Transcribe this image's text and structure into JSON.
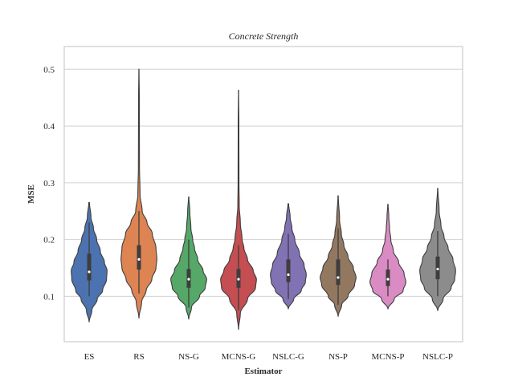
{
  "chart_data": {
    "type": "violin",
    "title": "Concrete Strength",
    "xlabel": "Estimator",
    "ylabel": "MSE",
    "ylim": [
      0.02,
      0.54
    ],
    "yticks": [
      0.1,
      0.2,
      0.3,
      0.4,
      0.5
    ],
    "ytick_labels": [
      "0.1",
      "0.2",
      "0.3",
      "0.4",
      "0.5"
    ],
    "grid": "horizontal",
    "categories": [
      "ES",
      "RS",
      "NS-G",
      "MCNS-G",
      "NSLC-G",
      "NS-P",
      "MCNS-P",
      "NSLC-P"
    ],
    "series": [
      {
        "category": "ES",
        "color": "#4c72b0",
        "min": 0.055,
        "max": 0.265,
        "q1": 0.128,
        "median": 0.143,
        "q3": 0.175,
        "whisker_low": 0.1,
        "whisker_high": 0.23,
        "profile": [
          [
            0.055,
            0.005
          ],
          [
            0.075,
            0.15
          ],
          [
            0.095,
            0.45
          ],
          [
            0.11,
            0.75
          ],
          [
            0.13,
            0.97
          ],
          [
            0.145,
            1.0
          ],
          [
            0.16,
            0.85
          ],
          [
            0.18,
            0.62
          ],
          [
            0.2,
            0.42
          ],
          [
            0.22,
            0.24
          ],
          [
            0.24,
            0.1
          ],
          [
            0.265,
            0.02
          ]
        ]
      },
      {
        "category": "RS",
        "color": "#dd8452",
        "min": 0.062,
        "max": 0.5,
        "q1": 0.147,
        "median": 0.165,
        "q3": 0.19,
        "whisker_low": 0.105,
        "whisker_high": 0.25,
        "profile": [
          [
            0.062,
            0.005
          ],
          [
            0.09,
            0.15
          ],
          [
            0.11,
            0.4
          ],
          [
            0.13,
            0.72
          ],
          [
            0.15,
            0.95
          ],
          [
            0.165,
            1.0
          ],
          [
            0.185,
            0.95
          ],
          [
            0.21,
            0.75
          ],
          [
            0.23,
            0.45
          ],
          [
            0.25,
            0.18
          ],
          [
            0.28,
            0.06
          ],
          [
            0.33,
            0.03
          ],
          [
            0.4,
            0.025
          ],
          [
            0.45,
            0.02
          ],
          [
            0.5,
            0.005
          ]
        ]
      },
      {
        "category": "NS-G",
        "color": "#55a868",
        "min": 0.06,
        "max": 0.275,
        "q1": 0.115,
        "median": 0.13,
        "q3": 0.148,
        "whisker_low": 0.08,
        "whisker_high": 0.2,
        "profile": [
          [
            0.06,
            0.005
          ],
          [
            0.08,
            0.15
          ],
          [
            0.1,
            0.6
          ],
          [
            0.115,
            0.92
          ],
          [
            0.13,
            1.0
          ],
          [
            0.145,
            0.8
          ],
          [
            0.165,
            0.5
          ],
          [
            0.185,
            0.32
          ],
          [
            0.2,
            0.22
          ],
          [
            0.22,
            0.12
          ],
          [
            0.25,
            0.06
          ],
          [
            0.275,
            0.01
          ]
        ]
      },
      {
        "category": "MCNS-G",
        "color": "#c44e52",
        "min": 0.042,
        "max": 0.463,
        "q1": 0.115,
        "median": 0.13,
        "q3": 0.148,
        "whisker_low": 0.075,
        "whisker_high": 0.19,
        "profile": [
          [
            0.042,
            0.005
          ],
          [
            0.07,
            0.1
          ],
          [
            0.095,
            0.5
          ],
          [
            0.115,
            0.95
          ],
          [
            0.13,
            1.0
          ],
          [
            0.145,
            0.82
          ],
          [
            0.165,
            0.5
          ],
          [
            0.185,
            0.3
          ],
          [
            0.2,
            0.2
          ],
          [
            0.23,
            0.1
          ],
          [
            0.26,
            0.04
          ],
          [
            0.3,
            0.025
          ],
          [
            0.4,
            0.02
          ],
          [
            0.463,
            0.005
          ]
        ]
      },
      {
        "category": "NSLC-G",
        "color": "#8172b3",
        "min": 0.078,
        "max": 0.263,
        "q1": 0.125,
        "median": 0.138,
        "q3": 0.165,
        "whisker_low": 0.095,
        "whisker_high": 0.21,
        "profile": [
          [
            0.078,
            0.005
          ],
          [
            0.095,
            0.3
          ],
          [
            0.11,
            0.72
          ],
          [
            0.125,
            0.95
          ],
          [
            0.138,
            1.0
          ],
          [
            0.155,
            0.88
          ],
          [
            0.175,
            0.62
          ],
          [
            0.2,
            0.36
          ],
          [
            0.22,
            0.2
          ],
          [
            0.24,
            0.1
          ],
          [
            0.263,
            0.02
          ]
        ]
      },
      {
        "category": "NS-P",
        "color": "#937860",
        "min": 0.065,
        "max": 0.277,
        "q1": 0.12,
        "median": 0.133,
        "q3": 0.165,
        "whisker_low": 0.085,
        "whisker_high": 0.22,
        "profile": [
          [
            0.065,
            0.005
          ],
          [
            0.085,
            0.2
          ],
          [
            0.1,
            0.55
          ],
          [
            0.12,
            0.92
          ],
          [
            0.133,
            1.0
          ],
          [
            0.15,
            0.85
          ],
          [
            0.17,
            0.55
          ],
          [
            0.19,
            0.32
          ],
          [
            0.21,
            0.18
          ],
          [
            0.235,
            0.08
          ],
          [
            0.277,
            0.01
          ]
        ]
      },
      {
        "category": "MCNS-P",
        "color": "#da8bc3",
        "min": 0.078,
        "max": 0.262,
        "q1": 0.118,
        "median": 0.13,
        "q3": 0.147,
        "whisker_low": 0.1,
        "whisker_high": 0.165,
        "profile": [
          [
            0.078,
            0.005
          ],
          [
            0.095,
            0.35
          ],
          [
            0.11,
            0.85
          ],
          [
            0.125,
            1.0
          ],
          [
            0.14,
            0.9
          ],
          [
            0.16,
            0.6
          ],
          [
            0.18,
            0.3
          ],
          [
            0.2,
            0.16
          ],
          [
            0.22,
            0.09
          ],
          [
            0.24,
            0.05
          ],
          [
            0.262,
            0.01
          ]
        ]
      },
      {
        "category": "NSLC-P",
        "color": "#8c8c8c",
        "min": 0.075,
        "max": 0.29,
        "q1": 0.13,
        "median": 0.148,
        "q3": 0.17,
        "whisker_low": 0.1,
        "whisker_high": 0.215,
        "profile": [
          [
            0.075,
            0.005
          ],
          [
            0.095,
            0.3
          ],
          [
            0.115,
            0.75
          ],
          [
            0.13,
            0.95
          ],
          [
            0.145,
            1.0
          ],
          [
            0.165,
            0.85
          ],
          [
            0.185,
            0.58
          ],
          [
            0.205,
            0.35
          ],
          [
            0.225,
            0.18
          ],
          [
            0.25,
            0.08
          ],
          [
            0.29,
            0.01
          ]
        ]
      }
    ]
  }
}
